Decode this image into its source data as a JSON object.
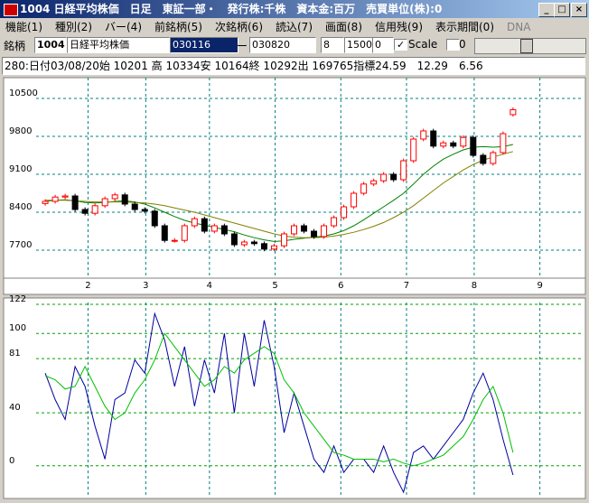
{
  "window": {
    "title": "1004 日経平均株価　日足　東証一部・　発行株:千株　資本金:百万　売買単位(株):0",
    "menu": [
      "機能(1)",
      "種別(2)",
      "バー(4)",
      "前銘柄(5)",
      "次銘柄(6)",
      "読込(7)",
      "画面(8)",
      "信用残(9)",
      "表示期間(0)",
      "DNA"
    ],
    "toolbar": {
      "label": "銘柄",
      "code": "1004",
      "name": "日経平均株価",
      "from": "030116",
      "dash": "ー",
      "to": "030820",
      "field1": "8",
      "field2": "1500",
      "field3": "0",
      "scale": "Scale",
      "field4": "0"
    },
    "info": "280:日付03/08/20始 10201 高 10334安 10164終 10292出 169765指標24.59　12.29　6.56"
  },
  "chart_data": [
    {
      "type": "candlestick",
      "xlim": [
        -4,
        54
      ],
      "ylim": [
        7200,
        10850
      ],
      "yticks": [
        7700,
        8400,
        9100,
        9800,
        10500
      ],
      "grid": true,
      "xticks": [
        {
          "value": 4.3,
          "label": "2"
        },
        {
          "value": 10.1,
          "label": "3"
        },
        {
          "value": 16.5,
          "label": "4"
        },
        {
          "value": 23.1,
          "label": "5"
        },
        {
          "value": 29.7,
          "label": "6"
        },
        {
          "value": 36.3,
          "label": "7"
        },
        {
          "value": 43.1,
          "label": "8"
        },
        {
          "value": 49.7,
          "label": "9"
        }
      ],
      "rise_color": "#ff0000",
      "fall_color": "#000000",
      "open": [
        8560,
        8600,
        8680,
        8700,
        8450,
        8380,
        8520,
        8650,
        8720,
        8550,
        8450,
        8420,
        8150,
        7880,
        7880,
        8150,
        8280,
        8050,
        8150,
        8000,
        7800,
        7850,
        7820,
        7720,
        7780,
        8000,
        8150,
        8050,
        7950,
        8150,
        8300,
        8500,
        8750,
        8920,
        8980,
        9100,
        9000,
        9350,
        9750,
        9900,
        9620,
        9680,
        9620,
        9780,
        9450,
        9300,
        9500,
        10201
      ],
      "high": [
        8640,
        8720,
        8740,
        8740,
        8490,
        8560,
        8690,
        8760,
        8760,
        8590,
        8490,
        8460,
        8190,
        7920,
        8190,
        8320,
        8320,
        8190,
        8190,
        8040,
        7890,
        7890,
        7860,
        7820,
        8040,
        8190,
        8190,
        8090,
        8190,
        8340,
        8540,
        8790,
        8960,
        9020,
        9140,
        9140,
        9390,
        9790,
        9940,
        9940,
        9720,
        9720,
        9820,
        9820,
        9490,
        9540,
        9890,
        10334
      ],
      "low": [
        8520,
        8560,
        8640,
        8410,
        8340,
        8340,
        8480,
        8610,
        8510,
        8410,
        8380,
        8110,
        7840,
        7840,
        7840,
        8110,
        8010,
        8010,
        7960,
        7760,
        7760,
        7780,
        7680,
        7680,
        7740,
        7960,
        8010,
        7910,
        7910,
        8110,
        8260,
        8460,
        8710,
        8880,
        8940,
        8960,
        8960,
        9310,
        9710,
        9580,
        9580,
        9580,
        9580,
        9410,
        9260,
        9260,
        9460,
        10164
      ],
      "close": [
        8600,
        8680,
        8700,
        8450,
        8380,
        8520,
        8650,
        8720,
        8550,
        8450,
        8420,
        8150,
        7880,
        7880,
        8150,
        8280,
        8050,
        8150,
        8000,
        7800,
        7850,
        7820,
        7720,
        7780,
        8000,
        8150,
        8050,
        7950,
        8150,
        8300,
        8500,
        8750,
        8920,
        8980,
        9100,
        9000,
        9350,
        9750,
        9900,
        9620,
        9680,
        9620,
        9780,
        9450,
        9300,
        9500,
        9850,
        10292
      ],
      "series": [
        {
          "color": "#008000",
          "values": [
            8600,
            8620,
            8630,
            8610,
            8580,
            8570,
            8580,
            8600,
            8610,
            8590,
            8550,
            8480,
            8400,
            8320,
            8250,
            8200,
            8160,
            8120,
            8080,
            8040,
            7980,
            7930,
            7890,
            7860,
            7870,
            7900,
            7920,
            7940,
            7960,
            8000,
            8060,
            8150,
            8260,
            8380,
            8500,
            8620,
            8750,
            8920,
            9100,
            9250,
            9380,
            9470,
            9550,
            9600,
            9610,
            9600,
            9610,
            9650
          ]
        },
        {
          "color": "#808000",
          "values": [
            8620,
            8620,
            8620,
            8610,
            8600,
            8590,
            8590,
            8590,
            8590,
            8580,
            8570,
            8550,
            8520,
            8480,
            8440,
            8400,
            8350,
            8300,
            8250,
            8200,
            8150,
            8100,
            8050,
            8000,
            7960,
            7940,
            7930,
            7930,
            7940,
            7960,
            7990,
            8030,
            8080,
            8140,
            8210,
            8300,
            8400,
            8520,
            8660,
            8800,
            8940,
            9060,
            9180,
            9280,
            9360,
            9420,
            9470,
            9520
          ]
        }
      ]
    },
    {
      "type": "line",
      "xlim": [
        -4,
        54
      ],
      "ylim": [
        -22,
        122
      ],
      "yticks": [
        0,
        40,
        81,
        100,
        122
      ],
      "grid": true,
      "series": [
        {
          "color": "#0000a0",
          "values": [
            70,
            50,
            35,
            75,
            60,
            30,
            5,
            50,
            55,
            80,
            70,
            115,
            95,
            60,
            90,
            45,
            80,
            55,
            100,
            40,
            100,
            60,
            110,
            75,
            25,
            55,
            30,
            5,
            -5,
            15,
            -5,
            5,
            5,
            -5,
            15,
            -5,
            -20,
            10,
            15,
            5,
            15,
            25,
            35,
            55,
            70,
            50,
            20,
            -7
          ]
        },
        {
          "color": "#00c000",
          "values": [
            68,
            65,
            58,
            60,
            75,
            60,
            45,
            35,
            40,
            55,
            65,
            80,
            100,
            90,
            80,
            70,
            60,
            65,
            75,
            70,
            80,
            85,
            90,
            85,
            65,
            55,
            40,
            30,
            20,
            10,
            8,
            5,
            5,
            5,
            3,
            5,
            2,
            0,
            2,
            5,
            8,
            15,
            22,
            35,
            50,
            60,
            40,
            10
          ]
        }
      ]
    }
  ]
}
